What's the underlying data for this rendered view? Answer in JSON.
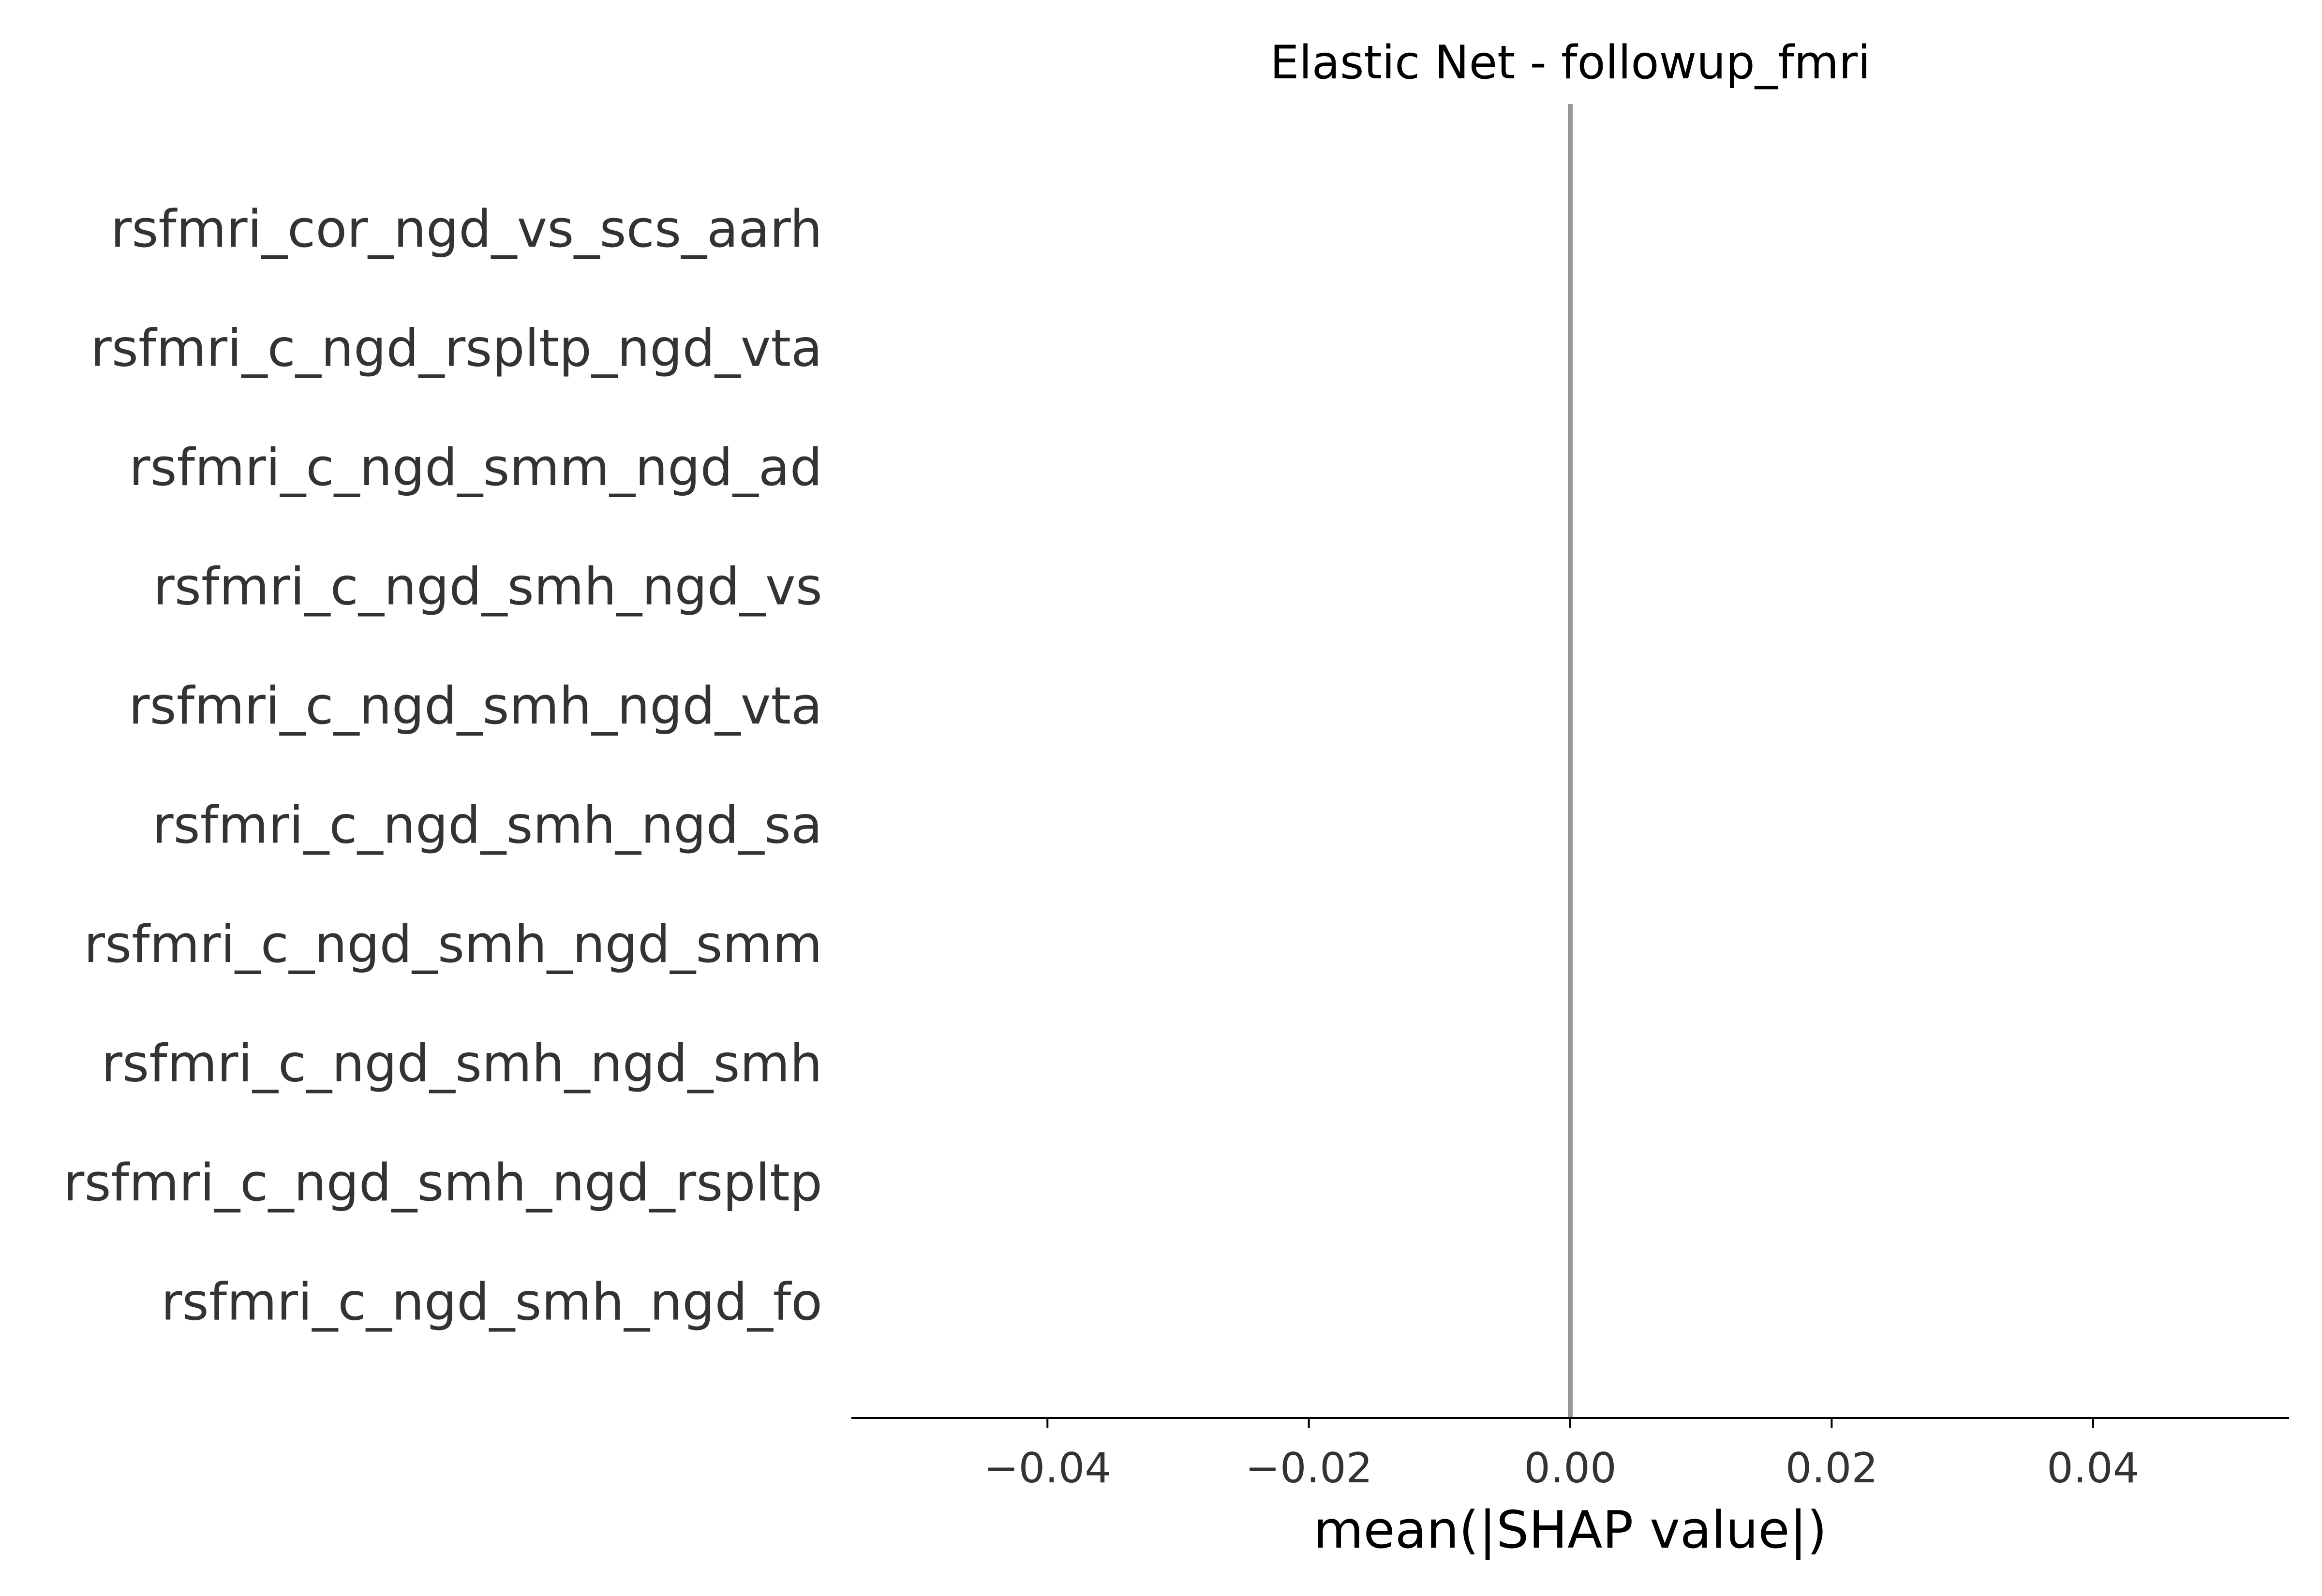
{
  "chart_data": {
    "type": "bar",
    "title": "Elastic Net - followup_fmri",
    "xlabel": "mean(|SHAP value|)",
    "ylabel": "",
    "categories": [
      "rsfmri_cor_ngd_vs_scs_aarh",
      "rsfmri_c_ngd_rspltp_ngd_vta",
      "rsfmri_c_ngd_smm_ngd_ad",
      "rsfmri_c_ngd_smh_ngd_vs",
      "rsfmri_c_ngd_smh_ngd_vta",
      "rsfmri_c_ngd_smh_ngd_sa",
      "rsfmri_c_ngd_smh_ngd_smm",
      "rsfmri_c_ngd_smh_ngd_smh",
      "rsfmri_c_ngd_smh_ngd_rspltp",
      "rsfmri_c_ngd_smh_ngd_fo"
    ],
    "values": [
      0,
      0,
      0,
      0,
      0,
      0,
      0,
      0,
      0,
      0
    ],
    "xlim": [
      -0.055,
      0.055
    ],
    "xticks": [
      -0.04,
      -0.02,
      0.0,
      0.02,
      0.04
    ],
    "xtick_labels": [
      "−0.04",
      "−0.02",
      "0.00",
      "0.02",
      "0.04"
    ],
    "zero_line": 0.0,
    "grid": false,
    "legend": "none",
    "colors": {
      "zero_line": "#999999",
      "axis": "#000000",
      "bar": "#1E88E5",
      "label": "#333333"
    }
  }
}
